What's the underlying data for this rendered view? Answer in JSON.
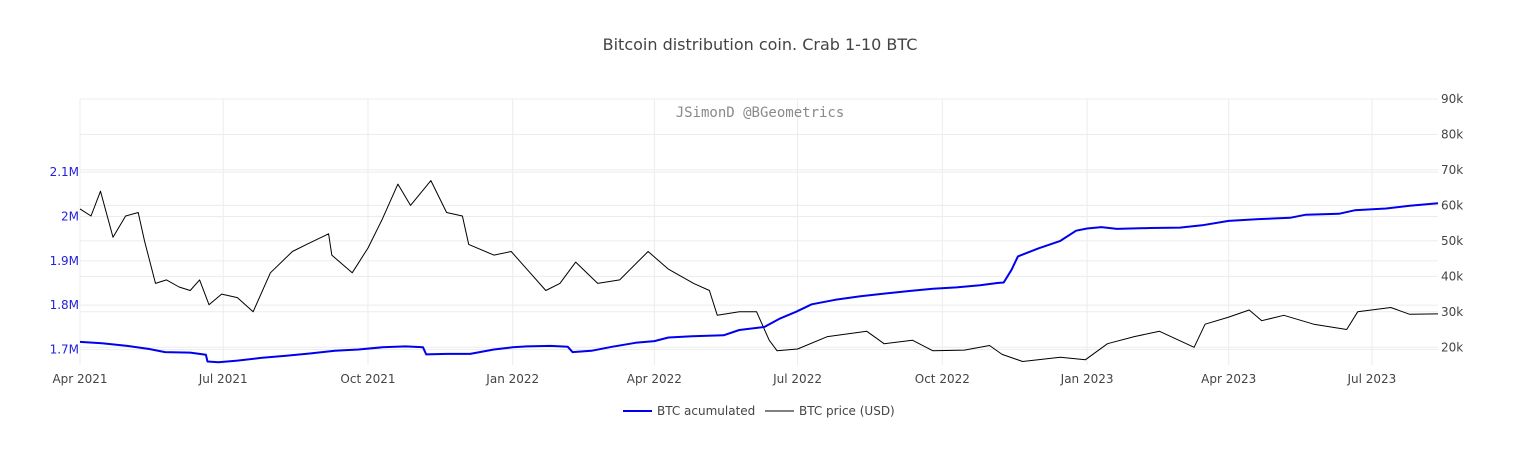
{
  "chart_data": {
    "type": "line",
    "title": "Bitcoin distribution coin. Crab 1-10 BTC",
    "watermark": "JSimonD @BGeometrics",
    "x_range": [
      "2021-04-01",
      "2023-08-12"
    ],
    "x_ticks": [
      {
        "date": "2021-04-01",
        "label": "Apr 2021"
      },
      {
        "date": "2021-07-01",
        "label": "Jul 2021"
      },
      {
        "date": "2021-10-01",
        "label": "Oct 2021"
      },
      {
        "date": "2022-01-01",
        "label": "Jan 2022"
      },
      {
        "date": "2022-04-01",
        "label": "Apr 2022"
      },
      {
        "date": "2022-07-01",
        "label": "Jul 2022"
      },
      {
        "date": "2022-10-01",
        "label": "Oct 2022"
      },
      {
        "date": "2023-01-01",
        "label": "Jan 2023"
      },
      {
        "date": "2023-04-01",
        "label": "Apr 2023"
      },
      {
        "date": "2023-07-01",
        "label": "Jul 2023"
      }
    ],
    "y_left": {
      "range": [
        1665000,
        2265000
      ],
      "ticks": [
        1700000,
        1800000,
        1900000,
        2000000,
        2100000
      ],
      "tick_labels": [
        "1.7M",
        "1.8M",
        "1.9M",
        "2M",
        "2.1M"
      ],
      "color": "#2222dd"
    },
    "y_right": {
      "range": [
        15000,
        90000
      ],
      "ticks": [
        20000,
        30000,
        40000,
        50000,
        60000,
        70000,
        80000,
        90000
      ],
      "tick_labels": [
        "20k",
        "30k",
        "40k",
        "50k",
        "60k",
        "70k",
        "80k",
        "90k"
      ]
    },
    "grid": true,
    "legend_position": "bottom-center",
    "series": [
      {
        "name": "BTC acumulated",
        "axis": "left",
        "color": "#0000ee",
        "points": [
          [
            "2021-04-01",
            1717000
          ],
          [
            "2021-04-15",
            1714000
          ],
          [
            "2021-05-01",
            1708000
          ],
          [
            "2021-05-15",
            1701000
          ],
          [
            "2021-05-25",
            1694000
          ],
          [
            "2021-06-10",
            1693000
          ],
          [
            "2021-06-20",
            1688000
          ],
          [
            "2021-06-21",
            1673000
          ],
          [
            "2021-06-28",
            1671000
          ],
          [
            "2021-07-10",
            1675000
          ],
          [
            "2021-07-25",
            1681000
          ],
          [
            "2021-08-10",
            1686000
          ],
          [
            "2021-08-25",
            1691000
          ],
          [
            "2021-09-10",
            1697000
          ],
          [
            "2021-09-25",
            1700000
          ],
          [
            "2021-10-10",
            1705000
          ],
          [
            "2021-10-25",
            1707000
          ],
          [
            "2021-11-05",
            1705000
          ],
          [
            "2021-11-07",
            1689000
          ],
          [
            "2021-11-20",
            1690000
          ],
          [
            "2021-12-05",
            1690000
          ],
          [
            "2021-12-20",
            1700000
          ],
          [
            "2022-01-01",
            1705000
          ],
          [
            "2022-01-10",
            1707000
          ],
          [
            "2022-01-25",
            1708000
          ],
          [
            "2022-02-05",
            1706000
          ],
          [
            "2022-02-08",
            1694000
          ],
          [
            "2022-02-20",
            1697000
          ],
          [
            "2022-03-05",
            1706000
          ],
          [
            "2022-03-20",
            1715000
          ],
          [
            "2022-04-01",
            1719000
          ],
          [
            "2022-04-10",
            1727000
          ],
          [
            "2022-04-25",
            1730000
          ],
          [
            "2022-05-15",
            1732000
          ],
          [
            "2022-05-25",
            1744000
          ],
          [
            "2022-06-10",
            1751000
          ],
          [
            "2022-06-20",
            1770000
          ],
          [
            "2022-06-30",
            1785000
          ],
          [
            "2022-07-10",
            1802000
          ],
          [
            "2022-07-25",
            1812000
          ],
          [
            "2022-08-10",
            1820000
          ],
          [
            "2022-08-25",
            1826000
          ],
          [
            "2022-09-10",
            1832000
          ],
          [
            "2022-09-25",
            1837000
          ],
          [
            "2022-10-10",
            1840000
          ],
          [
            "2022-10-25",
            1845000
          ],
          [
            "2022-11-05",
            1850000
          ],
          [
            "2022-11-09",
            1851000
          ],
          [
            "2022-11-14",
            1880000
          ],
          [
            "2022-11-18",
            1910000
          ],
          [
            "2022-12-01",
            1928000
          ],
          [
            "2022-12-15",
            1945000
          ],
          [
            "2022-12-25",
            1968000
          ],
          [
            "2023-01-01",
            1973000
          ],
          [
            "2023-01-10",
            1976000
          ],
          [
            "2023-01-20",
            1972000
          ],
          [
            "2023-02-10",
            1974000
          ],
          [
            "2023-03-01",
            1975000
          ],
          [
            "2023-03-15",
            1980000
          ],
          [
            "2023-04-01",
            1990000
          ],
          [
            "2023-04-20",
            1994000
          ],
          [
            "2023-05-10",
            1997000
          ],
          [
            "2023-05-20",
            2004000
          ],
          [
            "2023-06-10",
            2006000
          ],
          [
            "2023-06-20",
            2014000
          ],
          [
            "2023-07-10",
            2018000
          ],
          [
            "2023-07-25",
            2024000
          ],
          [
            "2023-08-12",
            2030000
          ]
        ]
      },
      {
        "name": "BTC price (USD)",
        "axis": "right",
        "color": "#000000",
        "points": [
          [
            "2021-04-01",
            59000
          ],
          [
            "2021-04-08",
            57000
          ],
          [
            "2021-04-14",
            64000
          ],
          [
            "2021-04-22",
            51000
          ],
          [
            "2021-04-30",
            57000
          ],
          [
            "2021-05-08",
            58000
          ],
          [
            "2021-05-12",
            50000
          ],
          [
            "2021-05-19",
            38000
          ],
          [
            "2021-05-26",
            39000
          ],
          [
            "2021-06-03",
            37000
          ],
          [
            "2021-06-10",
            36000
          ],
          [
            "2021-06-16",
            39000
          ],
          [
            "2021-06-22",
            32000
          ],
          [
            "2021-06-30",
            35000
          ],
          [
            "2021-07-10",
            34000
          ],
          [
            "2021-07-20",
            30000
          ],
          [
            "2021-07-31",
            41000
          ],
          [
            "2021-08-14",
            47000
          ],
          [
            "2021-08-23",
            49000
          ],
          [
            "2021-09-06",
            52000
          ],
          [
            "2021-09-08",
            46000
          ],
          [
            "2021-09-21",
            41000
          ],
          [
            "2021-10-01",
            48000
          ],
          [
            "2021-10-10",
            56000
          ],
          [
            "2021-10-20",
            66000
          ],
          [
            "2021-10-28",
            60000
          ],
          [
            "2021-11-10",
            67000
          ],
          [
            "2021-11-20",
            58000
          ],
          [
            "2021-11-30",
            57000
          ],
          [
            "2021-12-04",
            49000
          ],
          [
            "2021-12-20",
            46000
          ],
          [
            "2021-12-31",
            47000
          ],
          [
            "2022-01-10",
            42000
          ],
          [
            "2022-01-22",
            36000
          ],
          [
            "2022-01-31",
            38000
          ],
          [
            "2022-02-10",
            44000
          ],
          [
            "2022-02-24",
            38000
          ],
          [
            "2022-03-10",
            39000
          ],
          [
            "2022-03-28",
            47000
          ],
          [
            "2022-04-10",
            42000
          ],
          [
            "2022-04-26",
            38000
          ],
          [
            "2022-05-06",
            36000
          ],
          [
            "2022-05-11",
            29000
          ],
          [
            "2022-05-25",
            30000
          ],
          [
            "2022-06-05",
            30000
          ],
          [
            "2022-06-13",
            22000
          ],
          [
            "2022-06-18",
            19000
          ],
          [
            "2022-07-01",
            19500
          ],
          [
            "2022-07-20",
            23000
          ],
          [
            "2022-08-14",
            24500
          ],
          [
            "2022-08-25",
            21000
          ],
          [
            "2022-09-12",
            22000
          ],
          [
            "2022-09-25",
            19000
          ],
          [
            "2022-10-15",
            19200
          ],
          [
            "2022-10-31",
            20500
          ],
          [
            "2022-11-08",
            18000
          ],
          [
            "2022-11-21",
            16000
          ],
          [
            "2022-12-15",
            17200
          ],
          [
            "2022-12-31",
            16500
          ],
          [
            "2023-01-14",
            21000
          ],
          [
            "2023-01-31",
            23000
          ],
          [
            "2023-02-16",
            24500
          ],
          [
            "2023-03-10",
            20000
          ],
          [
            "2023-03-17",
            26500
          ],
          [
            "2023-04-01",
            28500
          ],
          [
            "2023-04-14",
            30500
          ],
          [
            "2023-04-22",
            27500
          ],
          [
            "2023-05-06",
            29000
          ],
          [
            "2023-05-25",
            26500
          ],
          [
            "2023-06-15",
            25000
          ],
          [
            "2023-06-22",
            30000
          ],
          [
            "2023-07-13",
            31200
          ],
          [
            "2023-07-25",
            29300
          ],
          [
            "2023-08-12",
            29400
          ]
        ]
      }
    ]
  }
}
